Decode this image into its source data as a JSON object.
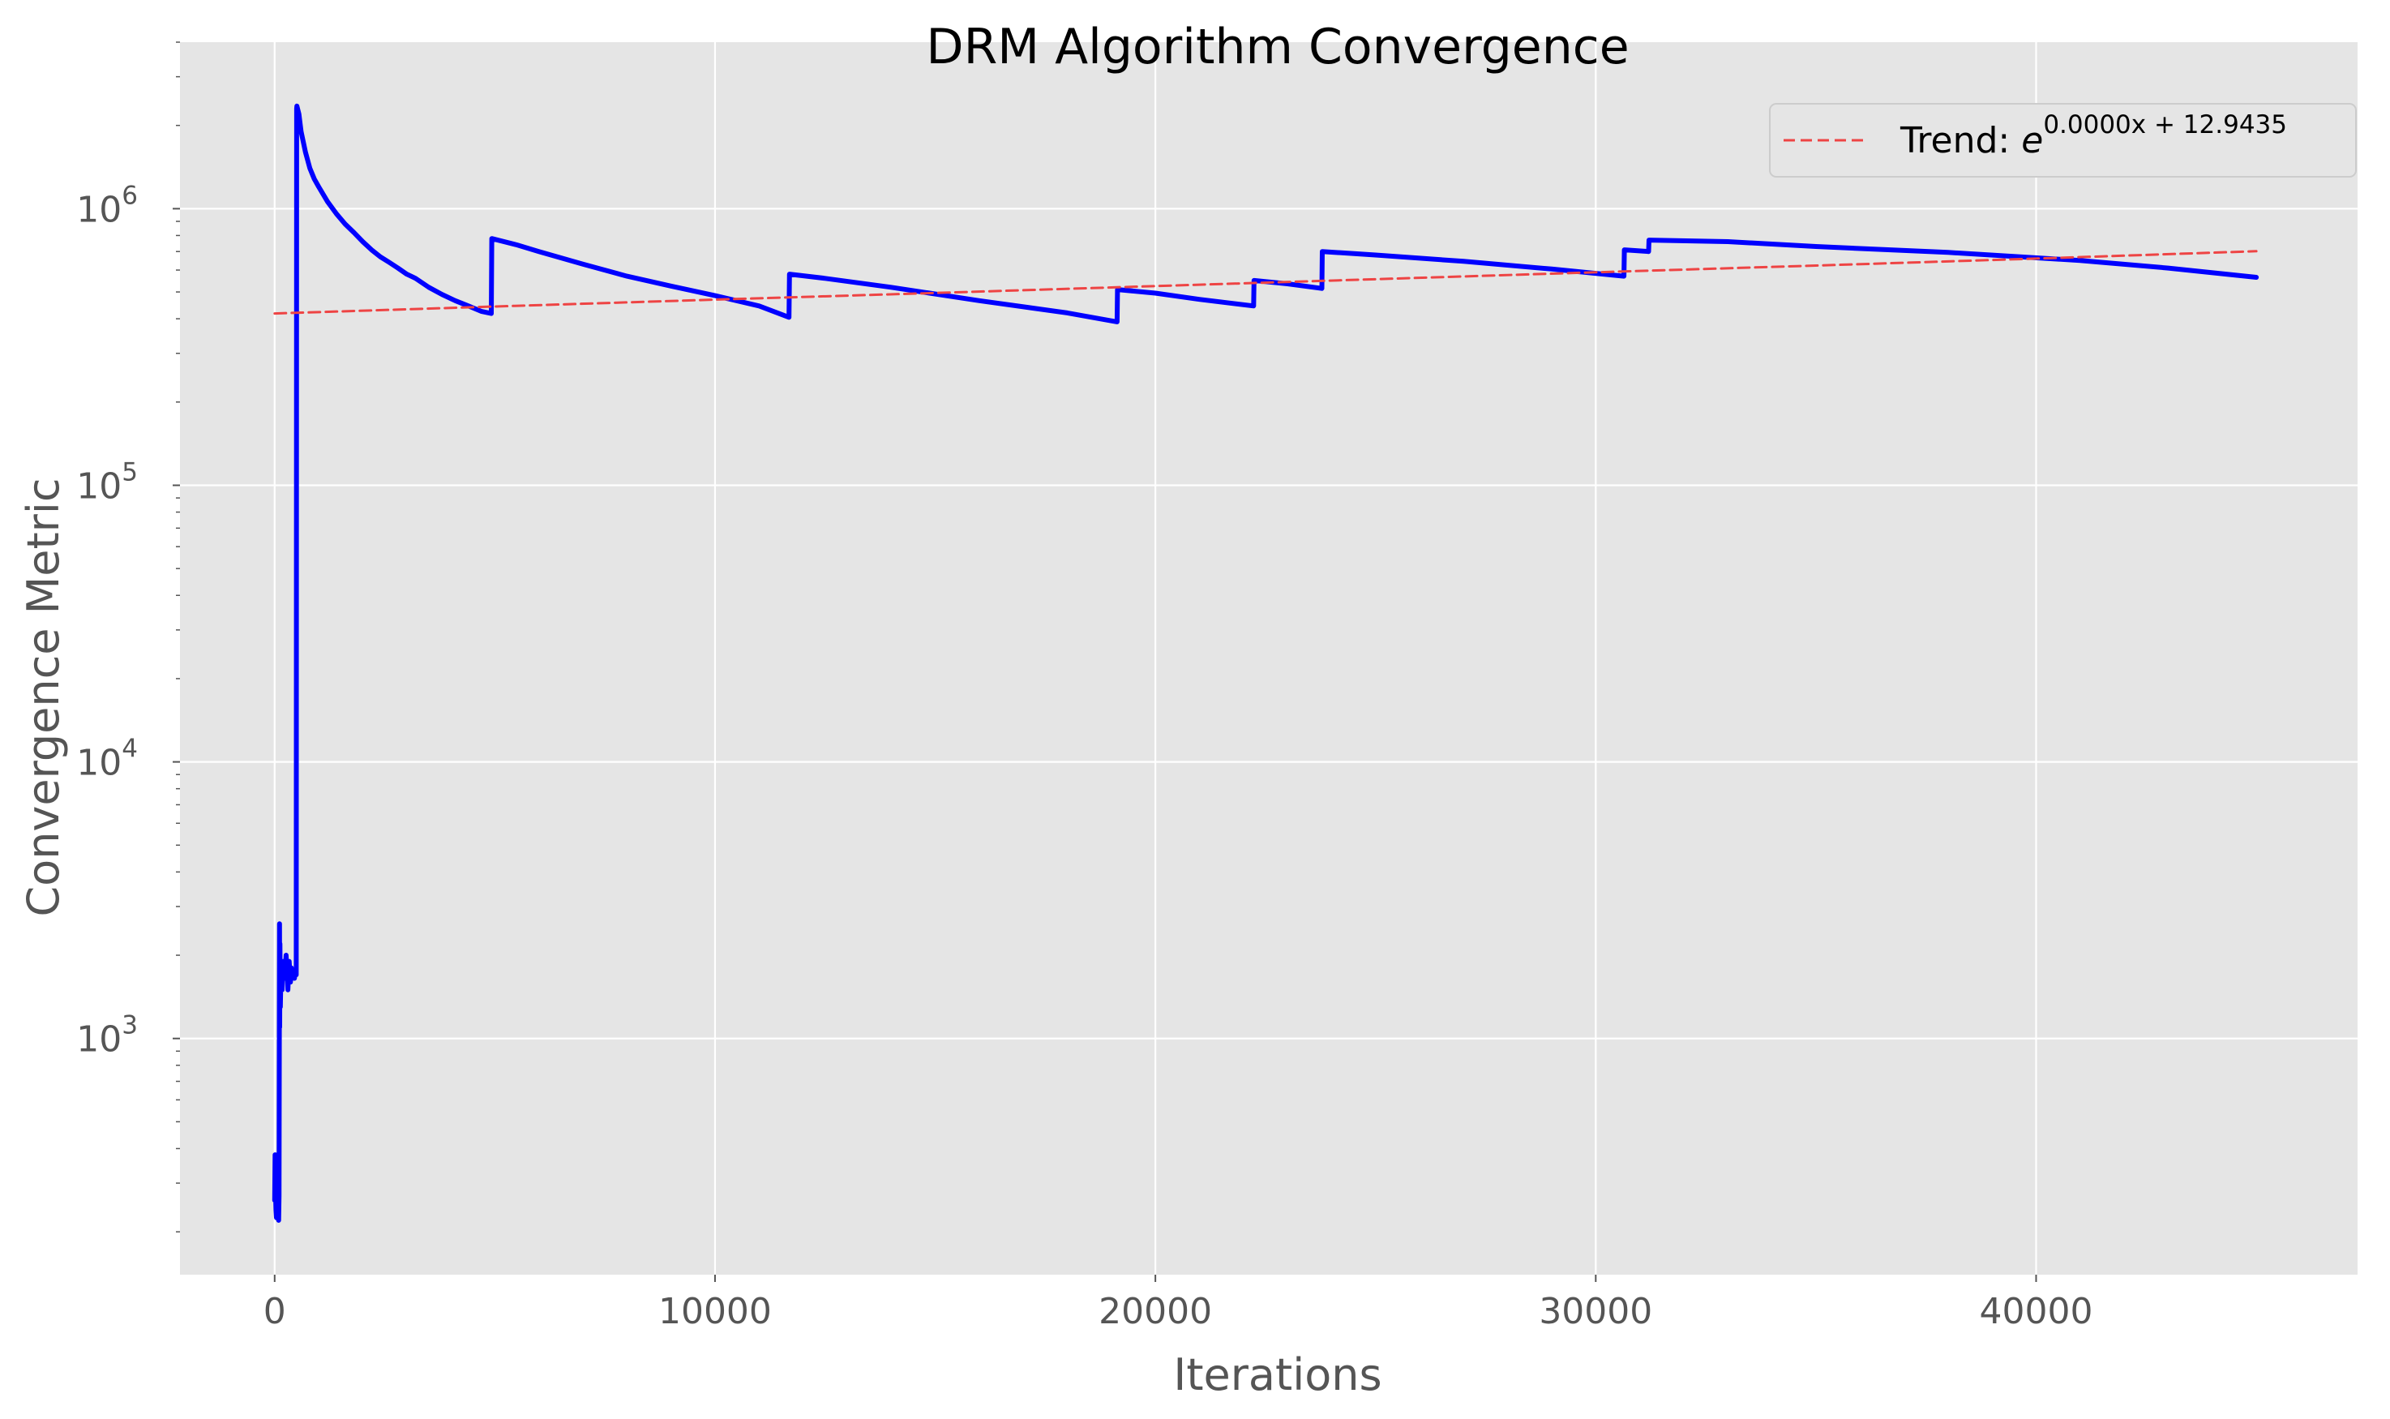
{
  "chart_data": {
    "type": "line",
    "title": "DRM Algorithm Convergence",
    "xlabel": "Iterations",
    "ylabel": "Convergence Metric",
    "xlim": [
      -2150,
      47300
    ],
    "ylim": [
      140,
      4000000
    ],
    "yscale": "log",
    "grid": true,
    "legend_position": "top-right",
    "x_ticks": [
      {
        "value": 0,
        "label": "0"
      },
      {
        "value": 10000,
        "label": "10000"
      },
      {
        "value": 20000,
        "label": "20000"
      },
      {
        "value": 30000,
        "label": "30000"
      },
      {
        "value": 40000,
        "label": "40000"
      }
    ],
    "y_ticks": [
      {
        "value": 1000,
        "base": "10",
        "exp": "3"
      },
      {
        "value": 10000,
        "base": "10",
        "exp": "4"
      },
      {
        "value": 100000,
        "base": "10",
        "exp": "5"
      },
      {
        "value": 1000000,
        "base": "10",
        "exp": "6"
      }
    ],
    "series": [
      {
        "color": "#0000ff",
        "style": "solid",
        "x": [
          0,
          10,
          20,
          30,
          40,
          50,
          60,
          70,
          80,
          90,
          100,
          110,
          115,
          120,
          130,
          140,
          150,
          160,
          170,
          180,
          200,
          230,
          260,
          300,
          330,
          360,
          380,
          400,
          420,
          450,
          470,
          490,
          500,
          505,
          550,
          600,
          700,
          800,
          900,
          1000,
          1200,
          1400,
          1600,
          1800,
          2000,
          2200,
          2400,
          2600,
          2800,
          3000,
          3200,
          3500,
          3800,
          4100,
          4400,
          4700,
          4920,
          4930,
          5500,
          6000,
          7000,
          8000,
          9000,
          10000,
          11000,
          11680,
          11690,
          12500,
          14000,
          16000,
          18000,
          19130,
          19140,
          20000,
          21000,
          22230,
          22240,
          23000,
          23780,
          23790,
          25000,
          27000,
          29000,
          30640,
          30650,
          31200,
          31210,
          33000,
          35000,
          38000,
          41000,
          43000,
          45000
        ],
        "values": [
          260,
          380,
          270,
          240,
          225,
          300,
          380,
          240,
          230,
          220,
          270,
          2600,
          1100,
          2200,
          1300,
          1600,
          1900,
          1700,
          1500,
          1800,
          1900,
          1650,
          2000,
          1500,
          1900,
          1600,
          1800,
          1650,
          1700,
          1650,
          1750,
          1700,
          2300000,
          2350000,
          2200000,
          1900000,
          1600000,
          1400000,
          1280000,
          1200000,
          1060000,
          960000,
          880000,
          820000,
          760000,
          710000,
          670000,
          640000,
          610000,
          580000,
          560000,
          520000,
          490000,
          465000,
          445000,
          425000,
          418000,
          780000,
          740000,
          700000,
          630000,
          570000,
          525000,
          485000,
          445000,
          405000,
          580000,
          560000,
          520000,
          465000,
          420000,
          390000,
          510000,
          495000,
          470000,
          445000,
          550000,
          535000,
          515000,
          700000,
          680000,
          645000,
          605000,
          570000,
          710000,
          700000,
          770000,
          760000,
          730000,
          695000,
          650000,
          610000,
          565000
        ]
      },
      {
        "name": "Trend: e^{0.0000x + 12.9435}",
        "color": "#ee4444",
        "style": "dashed",
        "x": [
          0,
          5000,
          10000,
          15000,
          20000,
          25000,
          30000,
          35000,
          40000,
          45000
        ],
        "values": [
          418000,
          443000,
          469000,
          496000,
          525000,
          556000,
          589000,
          623000,
          660000,
          702000
        ]
      }
    ],
    "legend": {
      "prefix": "Trend: ",
      "base": "e",
      "exponent": "0.0000x + 12.9435"
    }
  }
}
